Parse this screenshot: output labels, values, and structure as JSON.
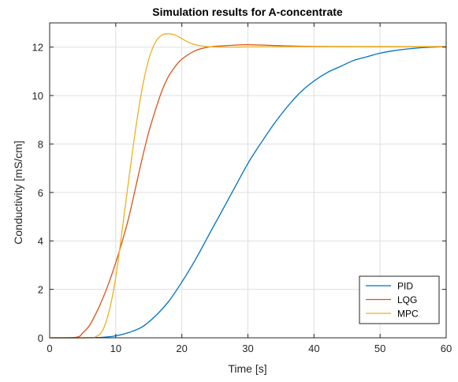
{
  "chart_data": {
    "type": "line",
    "title": "Simulation results for A-concentrate",
    "xlabel": "Time [s]",
    "ylabel": "Conductivity [mS/cm]",
    "xlim": [
      0,
      60
    ],
    "ylim": [
      0,
      13
    ],
    "xticks": [
      0,
      10,
      20,
      30,
      40,
      50,
      60
    ],
    "yticks": [
      0,
      2,
      4,
      6,
      8,
      10,
      12
    ],
    "grid": true,
    "legend_position": "bottom-right",
    "series": [
      {
        "name": "PID",
        "color": "#0072BD",
        "x": [
          0,
          5,
          8,
          10,
          12,
          14,
          16,
          18,
          20,
          22,
          24,
          26,
          28,
          30,
          32,
          34,
          36,
          38,
          40,
          42,
          44,
          46,
          48,
          50,
          52,
          54,
          56,
          58,
          60
        ],
        "y": [
          0,
          0,
          0.02,
          0.08,
          0.22,
          0.45,
          0.9,
          1.5,
          2.3,
          3.2,
          4.2,
          5.2,
          6.2,
          7.2,
          8.05,
          8.85,
          9.55,
          10.15,
          10.6,
          10.95,
          11.2,
          11.45,
          11.6,
          11.75,
          11.85,
          11.92,
          11.97,
          12.0,
          12.02
        ]
      },
      {
        "name": "LQG",
        "color": "#D95319",
        "x": [
          0,
          4,
          5,
          6,
          7,
          8,
          9,
          10,
          11,
          12,
          13,
          14,
          15,
          16,
          17,
          18,
          19,
          20,
          22,
          24,
          26,
          28,
          30,
          35,
          40,
          50,
          60
        ],
        "y": [
          0,
          0.02,
          0.2,
          0.5,
          1.0,
          1.6,
          2.3,
          3.1,
          4.0,
          5.0,
          6.2,
          7.4,
          8.5,
          9.4,
          10.2,
          10.8,
          11.2,
          11.5,
          11.85,
          12.0,
          12.05,
          12.08,
          12.1,
          12.06,
          12.03,
          12.02,
          12.02
        ]
      },
      {
        "name": "MPC",
        "color": "#EDB120",
        "x": [
          0,
          6,
          7,
          8,
          9,
          10,
          11,
          12,
          13,
          14,
          15,
          16,
          17,
          18,
          19,
          20,
          21,
          22,
          23,
          24,
          26,
          28,
          30,
          35,
          40,
          50,
          60
        ],
        "y": [
          0,
          0,
          0.05,
          0.3,
          1.1,
          2.5,
          4.5,
          6.6,
          8.6,
          10.3,
          11.5,
          12.2,
          12.5,
          12.55,
          12.5,
          12.35,
          12.2,
          12.1,
          12.05,
          12.02,
          12.0,
          12.0,
          12.01,
          12.02,
          12.02,
          12.02,
          12.02
        ]
      }
    ]
  }
}
